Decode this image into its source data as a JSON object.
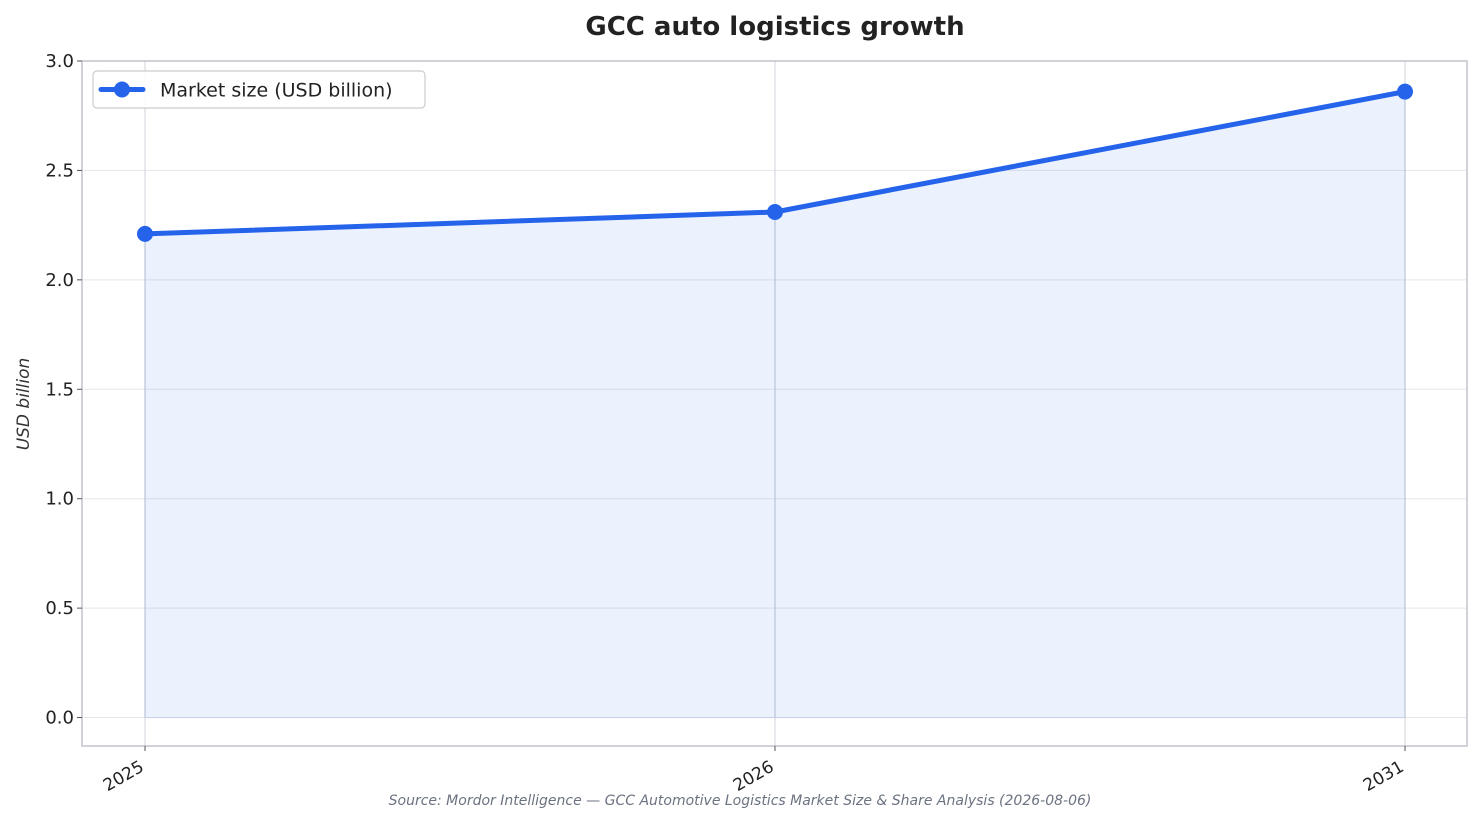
{
  "chart_data": {
    "type": "area",
    "title": "GCC auto logistics growth",
    "ylabel": "USD billion",
    "xlabel": "",
    "categories": [
      "2025",
      "2026",
      "2031"
    ],
    "series": [
      {
        "name": "Market size (USD billion)",
        "values": [
          2.21,
          2.31,
          2.86
        ]
      }
    ],
    "ylim": [
      -0.13,
      3.0
    ],
    "yticks": [
      "0.0",
      "0.5",
      "1.0",
      "1.5",
      "2.0",
      "2.5",
      "3.0"
    ],
    "grid": true,
    "legend_position": "top-left",
    "source": "Source: Mordor Intelligence — GCC Automotive Logistics Market Size & Share Analysis (2026-08-06)",
    "colors": {
      "line": "#2563eb",
      "fill": "#2563eb",
      "grid": "#e5e7eb",
      "frame": "#c0c4cc",
      "text": "#222222"
    }
  }
}
